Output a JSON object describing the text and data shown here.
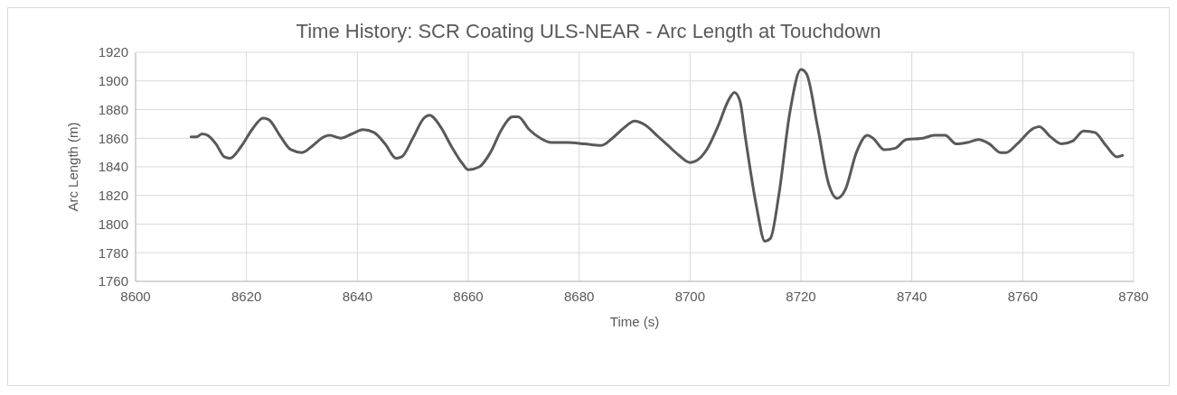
{
  "chart_data": {
    "type": "line",
    "title": "Time History: SCR Coating ULS-NEAR - Arc Length at Touchdown",
    "xlabel": "Time (s)",
    "ylabel": "Arc Length (m)",
    "xlim": [
      8600,
      8780
    ],
    "xticks": [
      8600,
      8620,
      8640,
      8660,
      8680,
      8700,
      8720,
      8740,
      8760,
      8780
    ],
    "ylim": [
      1760,
      1920
    ],
    "yticks": [
      1760,
      1780,
      1800,
      1820,
      1840,
      1860,
      1880,
      1900,
      1920
    ],
    "grid": true,
    "marker": "none",
    "line_style": "solid",
    "series": [
      {
        "color": "#595959",
        "x": [
          8610,
          8611,
          8612,
          8613,
          8614.5,
          8616,
          8617,
          8619,
          8621,
          8623,
          8624,
          8626,
          8628,
          8630,
          8632,
          8634,
          8635,
          8637,
          8639,
          8641,
          8643,
          8645,
          8647,
          8648,
          8650,
          8652,
          8653,
          8655,
          8657,
          8659,
          8660,
          8662,
          8664,
          8666,
          8668,
          8669,
          8671,
          8673,
          8675,
          8678,
          8681,
          8684,
          8686,
          8688,
          8690,
          8692,
          8694,
          8696,
          8698,
          8700,
          8701,
          8703,
          8705,
          8707,
          8708,
          8709,
          8710,
          8712,
          8713.5,
          8714.5,
          8716,
          8718,
          8720,
          8721,
          8723,
          8725,
          8726.5,
          8728,
          8730,
          8732,
          8733,
          8735,
          8737,
          8739,
          8742,
          8744,
          8746,
          8748,
          8750,
          8752,
          8754,
          8756,
          8757,
          8759,
          8762,
          8763,
          8765,
          8767,
          8769,
          8771,
          8773,
          8775,
          8777,
          8778
        ],
        "values": [
          1861,
          1861,
          1863,
          1862,
          1856,
          1847,
          1846,
          1854,
          1866,
          1874,
          1873,
          1862,
          1852,
          1850,
          1855,
          1861,
          1862,
          1860,
          1863,
          1866,
          1864,
          1856,
          1846,
          1847,
          1860,
          1874,
          1876,
          1868,
          1854,
          1842,
          1838,
          1840,
          1850,
          1866,
          1875,
          1875,
          1866,
          1860,
          1857,
          1857,
          1856,
          1855,
          1860,
          1867,
          1872,
          1869,
          1862,
          1855,
          1848,
          1843,
          1844,
          1852,
          1868,
          1887,
          1892,
          1886,
          1860,
          1812,
          1788,
          1790,
          1820,
          1878,
          1908,
          1905,
          1868,
          1828,
          1818,
          1824,
          1850,
          1862,
          1860,
          1852,
          1853,
          1859,
          1860,
          1862,
          1862,
          1856,
          1857,
          1859,
          1856,
          1850,
          1850,
          1856,
          1867,
          1868,
          1861,
          1856,
          1858,
          1865,
          1864,
          1855,
          1847,
          1848
        ]
      }
    ]
  }
}
